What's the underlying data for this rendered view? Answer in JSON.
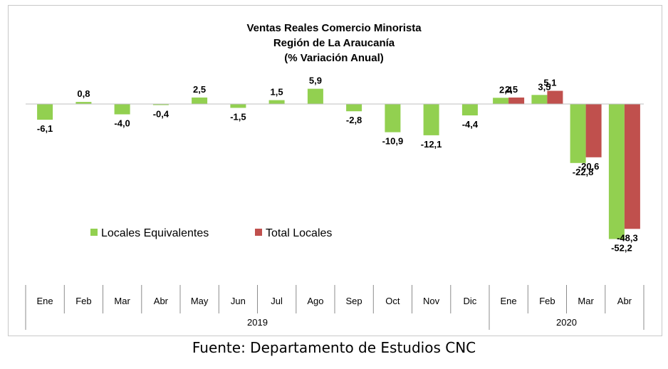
{
  "chart_data": {
    "type": "bar",
    "title_lines": [
      "Ventas Reales Comercio Minorista",
      "Región de La Araucanía",
      "(% Variación Anual)"
    ],
    "categories": [
      "Ene",
      "Feb",
      "Mar",
      "Abr",
      "May",
      "Jun",
      "Jul",
      "Ago",
      "Sep",
      "Oct",
      "Nov",
      "Dic",
      "Ene",
      "Feb",
      "Mar",
      "Abr"
    ],
    "year_groups": [
      {
        "label": "2019",
        "start": 0,
        "count": 12
      },
      {
        "label": "2020",
        "start": 12,
        "count": 4
      }
    ],
    "series": [
      {
        "name": "Locales Equivalentes",
        "color": "#92d050",
        "values": [
          -6.1,
          0.8,
          -4.0,
          -0.4,
          2.5,
          -1.5,
          1.5,
          5.9,
          -2.8,
          -10.9,
          -12.1,
          -4.4,
          2.4,
          3.5,
          -22.8,
          -52.2
        ],
        "labels": [
          "-6,1",
          "0,8",
          "-4,0",
          "-0,4",
          "2,5",
          "-1,5",
          "1,5",
          "5,9",
          "-2,8",
          "-10,9",
          "-12,1",
          "-4,4",
          "2,4",
          "3,5",
          "-22,8",
          "-52,2"
        ]
      },
      {
        "name": "Total Locales",
        "color": "#c0504d",
        "values": [
          null,
          null,
          null,
          null,
          null,
          null,
          null,
          null,
          null,
          null,
          null,
          null,
          2.5,
          5.1,
          -20.6,
          -48.3
        ],
        "labels": [
          null,
          null,
          null,
          null,
          null,
          null,
          null,
          null,
          null,
          null,
          null,
          null,
          "2,5",
          "5,1",
          "-20,6",
          "-48,3"
        ]
      }
    ],
    "legend_position": "lower-left",
    "grid": false
  },
  "source": "Fuente: Departamento de Estudios CNC"
}
